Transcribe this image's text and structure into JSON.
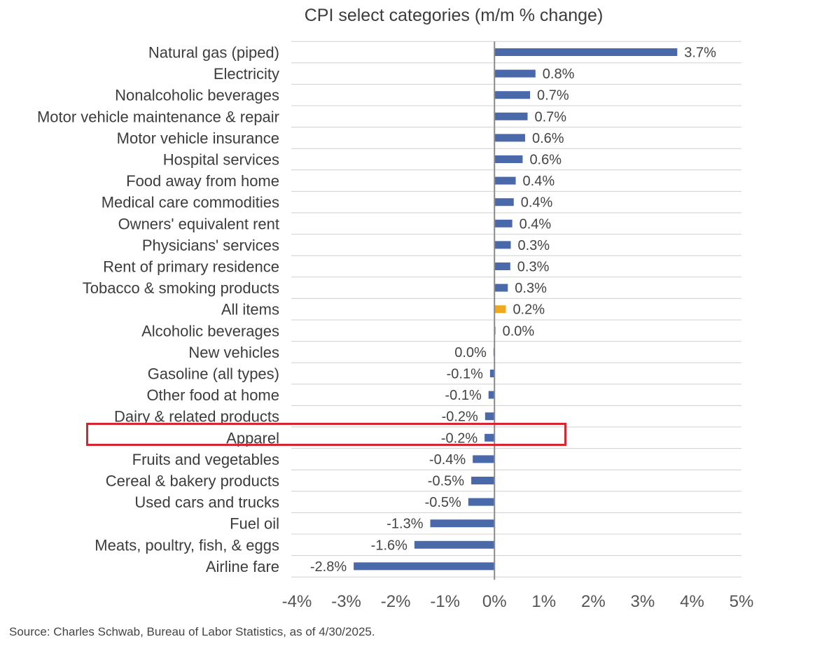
{
  "chart_data": {
    "type": "bar",
    "orientation": "horizontal",
    "title": "CPI select categories (m/m % change)",
    "xlabel": "",
    "ylabel": "",
    "xlim": [
      -4,
      5
    ],
    "x_ticks": [
      "-4%",
      "-3%",
      "-2%",
      "-1%",
      "0%",
      "1%",
      "2%",
      "3%",
      "4%",
      "5%"
    ],
    "x_tick_values": [
      -4,
      -3,
      -2,
      -1,
      0,
      1,
      2,
      3,
      4,
      5
    ],
    "grid": "horizontal",
    "categories": [
      "Natural gas (piped)",
      "Electricity",
      "Nonalcoholic beverages",
      "Motor vehicle maintenance & repair",
      "Motor vehicle insurance",
      "Hospital services",
      "Food away from home",
      "Medical care commodities",
      "Owners' equivalent rent",
      "Physicians' services",
      "Rent of primary residence",
      "Tobacco & smoking products",
      "All items",
      "Alcoholic beverages",
      "New vehicles",
      "Gasoline (all types)",
      "Other food at home",
      "Dairy & related products",
      "Apparel",
      "Fruits and vegetables",
      "Cereal & bakery products",
      "Used cars and trucks",
      "Fuel oil",
      "Meats, poultry, fish, & eggs",
      "Airline fare"
    ],
    "values": [
      3.7,
      0.83,
      0.72,
      0.67,
      0.62,
      0.57,
      0.43,
      0.39,
      0.36,
      0.33,
      0.32,
      0.27,
      0.23,
      0.02,
      -0.02,
      -0.09,
      -0.12,
      -0.19,
      -0.2,
      -0.44,
      -0.47,
      -0.53,
      -1.3,
      -1.62,
      -2.85
    ],
    "data_labels": [
      "3.7%",
      "0.8%",
      "0.7%",
      "0.7%",
      "0.6%",
      "0.6%",
      "0.4%",
      "0.4%",
      "0.4%",
      "0.3%",
      "0.3%",
      "0.3%",
      "0.2%",
      "0.0%",
      "0.0%",
      "-0.1%",
      "-0.1%",
      "-0.2%",
      "-0.2%",
      "-0.4%",
      "-0.5%",
      "-0.5%",
      "-1.3%",
      "-1.6%",
      "-2.8%"
    ],
    "highlighted_bar": "All items",
    "annotated_category": "Apparel",
    "colors": {
      "bar": "#4a69aa",
      "highlight_bar": "#f0a81c",
      "annotation_box": "#d9262e",
      "grid": "#d0d0d0",
      "zero_line": "#8a8a8a"
    }
  },
  "source": "Source: Charles Schwab, Bureau of Labor Statistics, as of  4/30/2025."
}
